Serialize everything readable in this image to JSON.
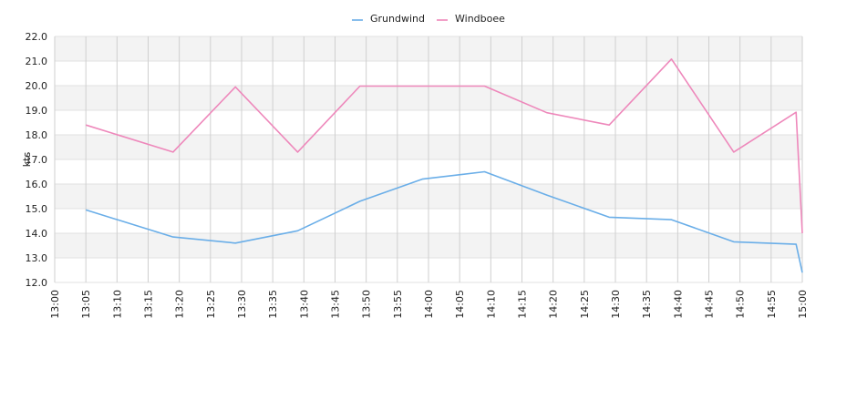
{
  "chart_data": {
    "type": "line",
    "title": "",
    "xlabel": "",
    "ylabel": "kts",
    "ylim": [
      12.0,
      22.0
    ],
    "y_ticks": [
      "12.0",
      "13.0",
      "14.0",
      "15.0",
      "16.0",
      "17.0",
      "18.0",
      "19.0",
      "20.0",
      "21.0",
      "22.0"
    ],
    "x_range": [
      "13:00",
      "15:00"
    ],
    "x_ticks": [
      "13:00",
      "13:05",
      "13:10",
      "13:15",
      "13:20",
      "13:25",
      "13:30",
      "13:35",
      "13:40",
      "13:45",
      "13:50",
      "13:55",
      "14:00",
      "14:05",
      "14:10",
      "14:15",
      "14:20",
      "14:25",
      "14:30",
      "14:35",
      "14:40",
      "14:45",
      "14:50",
      "14:55",
      "15:00"
    ],
    "grid": true,
    "legend_position": "top-center",
    "series": [
      {
        "name": "Grundwind",
        "color": "#6aaee8",
        "x": [
          "13:05",
          "13:19",
          "13:29",
          "13:39",
          "13:49",
          "13:59",
          "14:09",
          "14:19",
          "14:29",
          "14:39",
          "14:49",
          "14:59",
          "15:00"
        ],
        "values": [
          14.95,
          13.85,
          13.6,
          14.1,
          15.3,
          16.2,
          16.5,
          15.55,
          14.65,
          14.55,
          13.65,
          13.55,
          12.4
        ]
      },
      {
        "name": "Windboee",
        "color": "#ee88bb",
        "x": [
          "13:05",
          "13:19",
          "13:29",
          "13:39",
          "13:49",
          "13:59",
          "14:09",
          "14:19",
          "14:29",
          "14:39",
          "14:49",
          "14:59",
          "15:00"
        ],
        "values": [
          18.4,
          17.3,
          19.95,
          17.3,
          19.98,
          19.98,
          19.98,
          18.9,
          18.4,
          21.08,
          17.3,
          18.92,
          14.0
        ]
      }
    ]
  }
}
